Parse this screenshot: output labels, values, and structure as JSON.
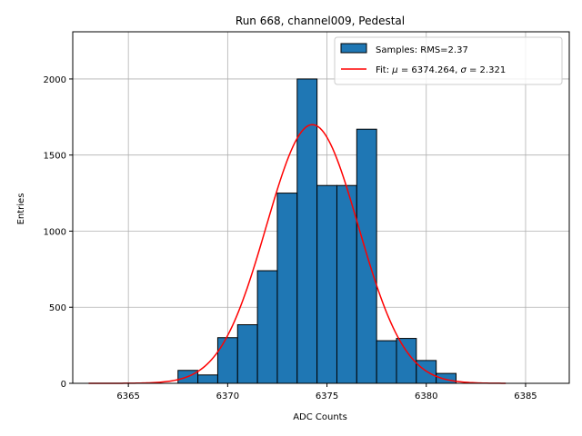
{
  "chart_data": {
    "type": "bar",
    "title": "Run 668, channel009, Pedestal",
    "xlabel": "ADC Counts",
    "ylabel": "Entries",
    "xlim": [
      6362.2,
      6387.2
    ],
    "ylim": [
      0,
      2310
    ],
    "xticks": [
      6365,
      6370,
      6375,
      6380,
      6385
    ],
    "yticks": [
      0,
      500,
      1000,
      1500,
      2000
    ],
    "grid": true,
    "legend_position": "top-right",
    "bin_width": 1,
    "bins": [
      {
        "x": 6368,
        "value": 85
      },
      {
        "x": 6369,
        "value": 55
      },
      {
        "x": 6370,
        "value": 300
      },
      {
        "x": 6371,
        "value": 385
      },
      {
        "x": 6372,
        "value": 740
      },
      {
        "x": 6373,
        "value": 1250
      },
      {
        "x": 6374,
        "value": 2000
      },
      {
        "x": 6375,
        "value": 1300
      },
      {
        "x": 6376,
        "value": 1300
      },
      {
        "x": 6377,
        "value": 1670
      },
      {
        "x": 6378,
        "value": 280
      },
      {
        "x": 6379,
        "value": 295
      },
      {
        "x": 6380,
        "value": 150
      },
      {
        "x": 6381,
        "value": 65
      }
    ],
    "fit": {
      "mu": 6374.264,
      "sigma": 2.321,
      "amplitude": 1700,
      "x_range": [
        6363,
        6384
      ]
    },
    "colors": {
      "bar": "#1f77b4",
      "fit": "#ff0000",
      "grid": "#b0b0b0"
    },
    "legend": [
      {
        "label": "Samples: RMS=2.37",
        "kind": "patch"
      },
      {
        "label_prefix": "Fit: ",
        "mu_symbol": "μ",
        "mu_text": " = 6374.264, ",
        "sigma_symbol": "σ",
        "sigma_text": " = 2.321",
        "kind": "line"
      }
    ]
  }
}
